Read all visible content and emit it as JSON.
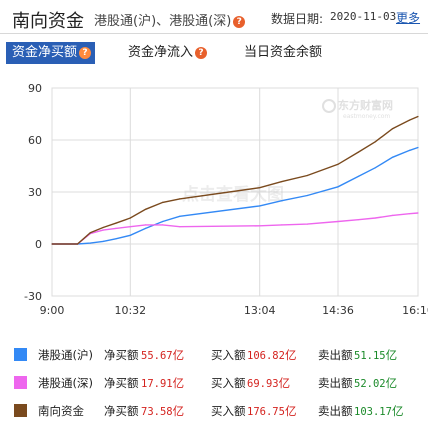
{
  "header": {
    "title": "南向资金",
    "subtitle": "港股通(沪)、港股通(深)",
    "date_label": "数据日期:",
    "date_value": "2020-11-03",
    "more_label": "更多"
  },
  "tabs": [
    {
      "label": "资金净买额",
      "active": true,
      "icon": "question-icon"
    },
    {
      "label": "资金净流入",
      "active": false,
      "icon": "question-icon"
    },
    {
      "label": "当日资金余额",
      "active": false
    }
  ],
  "watermark": {
    "text": "点击查看大图",
    "logo_text": "东方财富网",
    "logo_sub": "eastmoney.com"
  },
  "chart_data": {
    "type": "line",
    "x_ticks": [
      "9:00",
      "10:32",
      "13:04",
      "14:36",
      "16:10"
    ],
    "x_range": [
      "9:00",
      "16:10"
    ],
    "ylim": [
      -30,
      90
    ],
    "y_ticks": [
      -30,
      0,
      30,
      60,
      90
    ],
    "grid": true,
    "series": [
      {
        "name": "港股通(沪)",
        "color": "#3389f5",
        "points": [
          [
            "9:00",
            0
          ],
          [
            "9:30",
            0
          ],
          [
            "9:45",
            0.5
          ],
          [
            "10:00",
            1.5
          ],
          [
            "10:15",
            3
          ],
          [
            "10:32",
            5
          ],
          [
            "10:50",
            9
          ],
          [
            "11:10",
            13
          ],
          [
            "11:30",
            16
          ],
          [
            "13:04",
            22
          ],
          [
            "13:30",
            25
          ],
          [
            "14:00",
            28
          ],
          [
            "14:36",
            33
          ],
          [
            "15:00",
            39
          ],
          [
            "15:20",
            44
          ],
          [
            "15:40",
            50
          ],
          [
            "16:00",
            54
          ],
          [
            "16:10",
            55.67
          ]
        ]
      },
      {
        "name": "港股通(深)",
        "color": "#ee66ee",
        "points": [
          [
            "9:00",
            0
          ],
          [
            "9:30",
            0
          ],
          [
            "9:45",
            6
          ],
          [
            "10:00",
            8
          ],
          [
            "10:15",
            9
          ],
          [
            "10:32",
            10
          ],
          [
            "10:50",
            11
          ],
          [
            "11:10",
            11
          ],
          [
            "11:30",
            10
          ],
          [
            "13:04",
            10.5
          ],
          [
            "13:30",
            11
          ],
          [
            "14:00",
            11.5
          ],
          [
            "14:36",
            13
          ],
          [
            "15:00",
            14
          ],
          [
            "15:20",
            15
          ],
          [
            "15:40",
            16.5
          ],
          [
            "16:00",
            17.5
          ],
          [
            "16:10",
            17.91
          ]
        ]
      },
      {
        "name": "南向资金",
        "color": "#7a4a1e",
        "points": [
          [
            "9:00",
            0
          ],
          [
            "9:30",
            0
          ],
          [
            "9:45",
            6.5
          ],
          [
            "10:00",
            9.5
          ],
          [
            "10:15",
            12
          ],
          [
            "10:32",
            15
          ],
          [
            "10:50",
            20
          ],
          [
            "11:10",
            24
          ],
          [
            "11:30",
            26
          ],
          [
            "13:04",
            32.5
          ],
          [
            "13:30",
            36
          ],
          [
            "14:00",
            39.5
          ],
          [
            "14:36",
            46
          ],
          [
            "15:00",
            53
          ],
          [
            "15:20",
            59
          ],
          [
            "15:40",
            66.5
          ],
          [
            "16:00",
            71.5
          ],
          [
            "16:10",
            73.58
          ]
        ]
      }
    ]
  },
  "legend": [
    {
      "name": "港股通(沪)",
      "color": "#3389f5",
      "net_label": "净买额",
      "net": "55.67",
      "buy_label": "买入额",
      "buy": "106.82",
      "sell_label": "卖出额",
      "sell": "51.15",
      "unit": "亿"
    },
    {
      "name": "港股通(深)",
      "color": "#ee66ee",
      "net_label": "净买额",
      "net": "17.91",
      "buy_label": "买入额",
      "buy": "69.93",
      "sell_label": "卖出额",
      "sell": "52.02",
      "unit": "亿"
    },
    {
      "name": "南向资金",
      "color": "#7a4a1e",
      "net_label": "净买额",
      "net": "73.58",
      "buy_label": "买入额",
      "buy": "176.75",
      "sell_label": "卖出额",
      "sell": "103.17",
      "unit": "亿"
    }
  ]
}
